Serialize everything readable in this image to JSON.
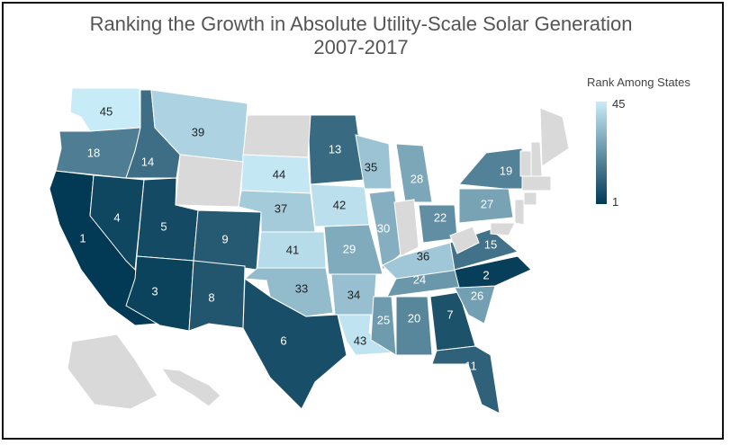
{
  "title_line1": "Ranking the Growth in Absolute Utility-Scale Solar Generation",
  "title_line2": "2007-2017",
  "legend": {
    "title": "Rank Among States",
    "max_label": "45",
    "min_label": "1",
    "colors": {
      "high_rank": "#023a55",
      "low_rank": "#c8ebf8",
      "no_data": "#d9d9d9",
      "border": "#ffffff"
    }
  },
  "map_data": {
    "type": "choropleth-us-states",
    "value_meaning": "rank",
    "states": [
      {
        "name": "CA",
        "rank": 1
      },
      {
        "name": "NV",
        "rank": 4
      },
      {
        "name": "UT",
        "rank": 5
      },
      {
        "name": "AZ",
        "rank": 3
      },
      {
        "name": "CO",
        "rank": 9
      },
      {
        "name": "NM",
        "rank": 8
      },
      {
        "name": "TX",
        "rank": 6
      },
      {
        "name": "WA",
        "rank": 45
      },
      {
        "name": "OR",
        "rank": 18
      },
      {
        "name": "ID",
        "rank": 14
      },
      {
        "name": "MT",
        "rank": 39
      },
      {
        "name": "SD",
        "rank": 44
      },
      {
        "name": "NE",
        "rank": 37
      },
      {
        "name": "KS",
        "rank": 41
      },
      {
        "name": "OK",
        "rank": 33
      },
      {
        "name": "MN",
        "rank": 13
      },
      {
        "name": "IA",
        "rank": 42
      },
      {
        "name": "MO",
        "rank": 29
      },
      {
        "name": "AR",
        "rank": 34
      },
      {
        "name": "LA",
        "rank": 43
      },
      {
        "name": "WI",
        "rank": 35
      },
      {
        "name": "IL",
        "rank": 30
      },
      {
        "name": "MI",
        "rank": 28
      },
      {
        "name": "OH",
        "rank": 22
      },
      {
        "name": "KY",
        "rank": 36
      },
      {
        "name": "TN",
        "rank": 24
      },
      {
        "name": "MS",
        "rank": 25
      },
      {
        "name": "AL",
        "rank": 20
      },
      {
        "name": "GA",
        "rank": 7
      },
      {
        "name": "FL",
        "rank": 11
      },
      {
        "name": "SC",
        "rank": 26
      },
      {
        "name": "NC",
        "rank": 2
      },
      {
        "name": "VA",
        "rank": 15
      },
      {
        "name": "PA",
        "rank": 27
      },
      {
        "name": "NY",
        "rank": 19
      },
      {
        "name": "NJ",
        "rank": null
      },
      {
        "name": "MA",
        "rank": null
      },
      {
        "name": "VT",
        "rank": null
      },
      {
        "name": "CT",
        "rank": null
      },
      {
        "name": "MD",
        "rank": null
      },
      {
        "name": "HI",
        "rank": null
      },
      {
        "name": "ND",
        "rank": null
      },
      {
        "name": "WY",
        "rank": null
      },
      {
        "name": "IN",
        "rank": null
      },
      {
        "name": "WV",
        "rank": null
      },
      {
        "name": "ME",
        "rank": null
      },
      {
        "name": "NH",
        "rank": null
      },
      {
        "name": "AK",
        "rank": null
      }
    ]
  }
}
